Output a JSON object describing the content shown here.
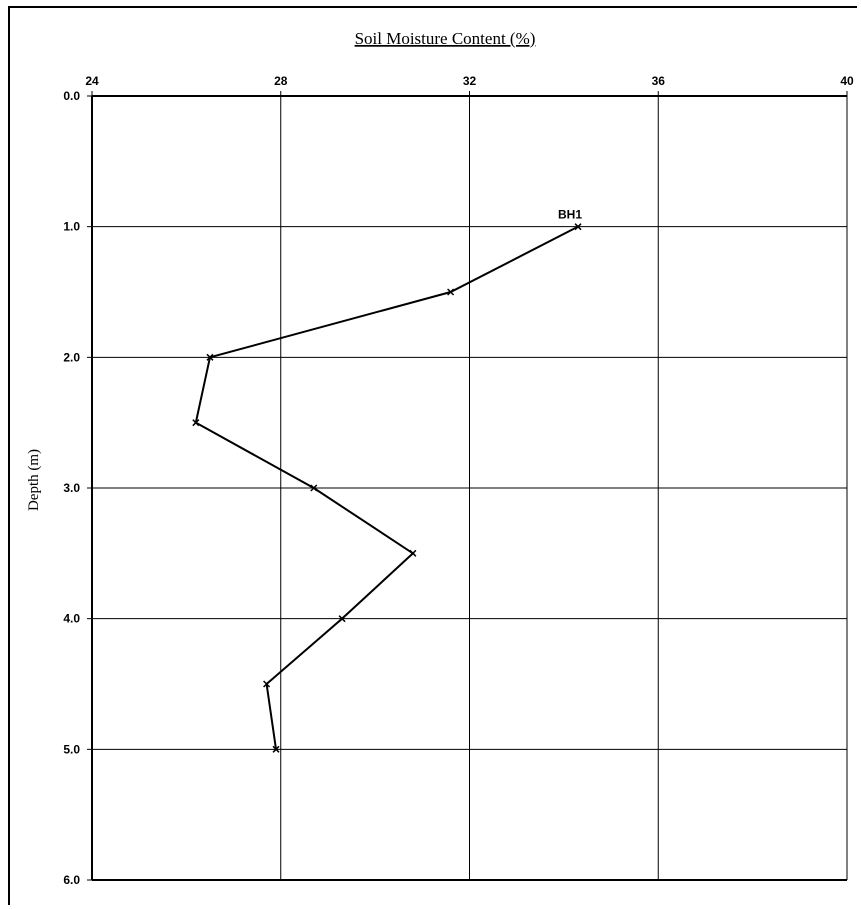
{
  "chart_data": {
    "type": "line",
    "title": "Soil Moisture Content (%)",
    "xlabel": "Soil Moisture Content (%)",
    "ylabel": "Depth (m)",
    "xlim": [
      24,
      40
    ],
    "ylim": [
      0,
      6
    ],
    "y_inverted": true,
    "x_axis_position": "top",
    "x_ticks": [
      "24",
      "28",
      "32",
      "36",
      "40"
    ],
    "y_ticks": [
      "0.0",
      "1.0",
      "2.0",
      "3.0",
      "4.0",
      "5.0",
      "6.0"
    ],
    "grid": true,
    "series": [
      {
        "name": "BH1",
        "x": [
          34.3,
          31.6,
          26.5,
          26.2,
          28.7,
          30.8,
          29.3,
          27.7,
          27.9
        ],
        "y": [
          1.0,
          1.5,
          2.0,
          2.5,
          3.0,
          3.5,
          4.0,
          4.5,
          5.0
        ],
        "marker": "x",
        "color": "#000000"
      }
    ]
  }
}
